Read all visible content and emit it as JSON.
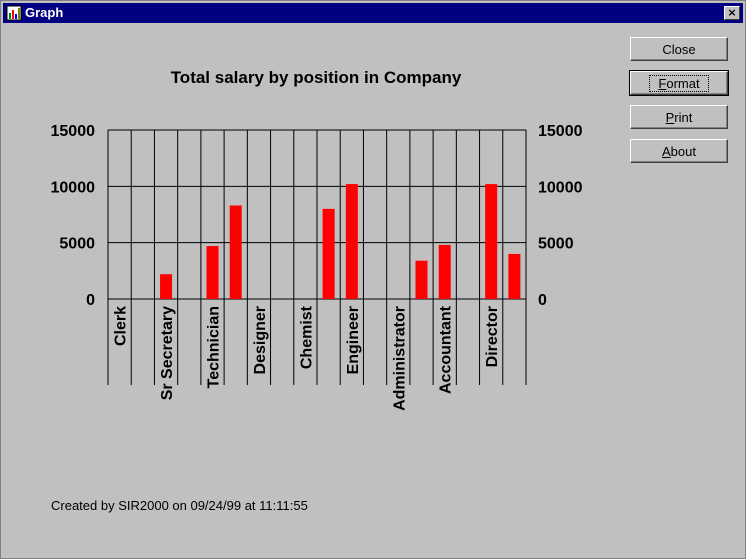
{
  "window": {
    "title": "Graph",
    "close_glyph": "×"
  },
  "buttons": {
    "close": {
      "label": "Close"
    },
    "format": {
      "label": "Format",
      "mnemonic": "F",
      "rest": "ormat"
    },
    "print": {
      "label": "Print",
      "mnemonic": "P",
      "rest": "rint"
    },
    "about": {
      "label": "About",
      "mnemonic": "A",
      "rest": "bout"
    }
  },
  "footer": {
    "text": "Created by SIR2000 on 09/24/99 at 11:11:55"
  },
  "colors": {
    "bar": "#ff0000",
    "background": "#c0c0c0",
    "titlebar": "#000080"
  },
  "chart_data": {
    "type": "bar",
    "title": "Total salary by position in Company",
    "xlabel": "",
    "ylabel": "",
    "ylim": [
      0,
      15000
    ],
    "yticks": [
      0,
      5000,
      10000,
      15000
    ],
    "categories": [
      "Clerk",
      "",
      "Sr Secretary",
      "",
      "Technician",
      "",
      "Designer",
      "",
      "Chemist",
      "",
      "Engineer",
      "",
      "Administrator",
      "",
      "Accountant",
      "",
      "Director",
      ""
    ],
    "values": [
      0,
      0,
      2200,
      0,
      4700,
      8300,
      0,
      0,
      0,
      8000,
      10200,
      0,
      0,
      3400,
      4800,
      0,
      10200,
      4000
    ],
    "grid": true,
    "legend": "none"
  }
}
